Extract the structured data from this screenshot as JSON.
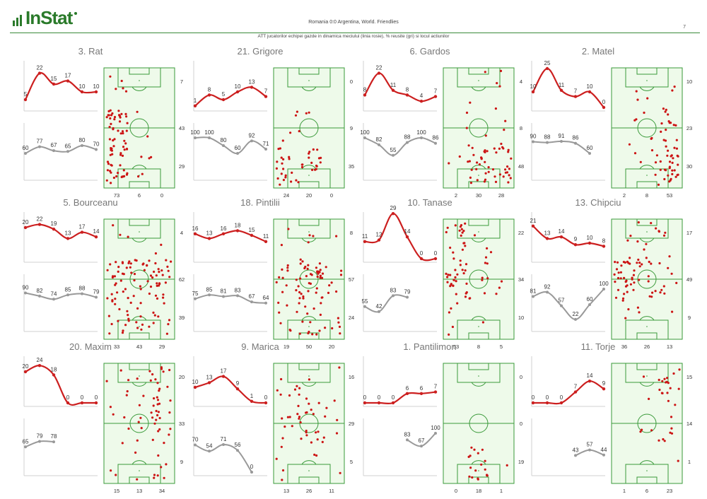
{
  "header": {
    "logo_text": "InStat",
    "match": "Romania 0:0 Argentina, World. Friendlies",
    "page": "7",
    "subtitle": "ATT jucatorilor echipei gazde in dinamica meciului (linia rosie), % reusite (gri) si locul actiunilor"
  },
  "colors": {
    "red": "#cc1f1f",
    "gray": "#999999",
    "pitch_fill": "#eefaea",
    "pitch_line": "#3a9a3a",
    "dots": "#cc1414",
    "logo": "#2a7a2a"
  },
  "chart_data": [
    {
      "type": "line",
      "player": "3. Rat",
      "red": [
        5,
        22,
        15,
        17,
        10,
        10
      ],
      "gray": [
        60,
        77,
        67,
        65,
        80,
        70
      ],
      "side": [
        7,
        43,
        29
      ],
      "bottom": [
        73,
        6,
        0
      ]
    },
    {
      "type": "line",
      "player": "21. Grigore",
      "red": [
        1,
        8,
        5,
        10,
        13,
        7
      ],
      "gray": [
        100,
        100,
        80,
        60,
        92,
        71
      ],
      "side": [
        0,
        9,
        35
      ],
      "bottom": [
        24,
        20,
        0
      ]
    },
    {
      "type": "line",
      "player": "6. Gardos",
      "red": [
        8,
        22,
        11,
        8,
        4,
        7
      ],
      "gray": [
        100,
        82,
        55,
        88,
        100,
        86
      ],
      "side": [
        4,
        8,
        48
      ],
      "bottom": [
        2,
        30,
        28
      ]
    },
    {
      "type": "line",
      "player": "2. Matel",
      "red": [
        10,
        25,
        11,
        7,
        10,
        0
      ],
      "gray": [
        90,
        88,
        91,
        86,
        60,
        null
      ],
      "side": [
        10,
        23,
        30
      ],
      "bottom": [
        2,
        8,
        53
      ]
    },
    {
      "type": "line",
      "player": "5. Bourceanu",
      "red": [
        20,
        22,
        19,
        13,
        17,
        14
      ],
      "gray": [
        90,
        82,
        74,
        85,
        88,
        79
      ],
      "side": [
        4,
        62,
        39
      ],
      "bottom": [
        33,
        43,
        29
      ]
    },
    {
      "type": "line",
      "player": "18. Pintilii",
      "red": [
        16,
        13,
        16,
        18,
        15,
        11
      ],
      "gray": [
        75,
        85,
        81,
        83,
        67,
        64
      ],
      "side": [
        8,
        57,
        24
      ],
      "bottom": [
        19,
        50,
        20
      ]
    },
    {
      "type": "line",
      "player": "10. Tanase",
      "red": [
        11,
        12,
        29,
        14,
        0,
        0
      ],
      "gray": [
        55,
        42,
        83,
        79,
        null,
        null
      ],
      "side": [
        22,
        34,
        10
      ],
      "bottom": [
        53,
        8,
        5
      ]
    },
    {
      "type": "line",
      "player": "13. Chipciu",
      "red": [
        21,
        13,
        14,
        9,
        10,
        8
      ],
      "gray": [
        81,
        92,
        57,
        22,
        60,
        100
      ],
      "side": [
        17,
        49,
        9
      ],
      "bottom": [
        36,
        26,
        13
      ]
    },
    {
      "type": "line",
      "player": "20. Maxim",
      "red": [
        20,
        24,
        18,
        0,
        0,
        0
      ],
      "gray": [
        65,
        79,
        78,
        null,
        null,
        null
      ],
      "side": [
        20,
        33,
        9
      ],
      "bottom": [
        15,
        13,
        34
      ]
    },
    {
      "type": "line",
      "player": "9. Marica",
      "red": [
        10,
        13,
        17,
        9,
        1,
        0
      ],
      "gray": [
        70,
        54,
        71,
        56,
        0,
        null
      ],
      "side": [
        16,
        29,
        5
      ],
      "bottom": [
        13,
        26,
        11
      ]
    },
    {
      "type": "line",
      "player": "1. Pantilimon",
      "red": [
        0,
        0,
        0,
        6,
        6,
        7
      ],
      "gray": [
        null,
        null,
        null,
        83,
        67,
        100
      ],
      "side": [
        0,
        0,
        19
      ],
      "bottom": [
        0,
        18,
        1
      ]
    },
    {
      "type": "line",
      "player": "11. Torje",
      "red": [
        0,
        0,
        0,
        7,
        14,
        9
      ],
      "gray": [
        null,
        null,
        null,
        43,
        57,
        44
      ],
      "side": [
        15,
        14,
        1
      ],
      "bottom": [
        1,
        6,
        23
      ]
    }
  ]
}
